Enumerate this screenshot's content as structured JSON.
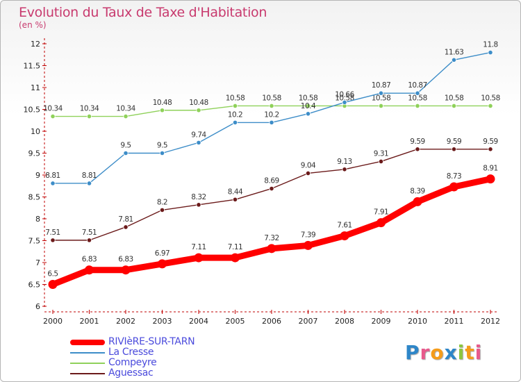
{
  "title": "Evolution du Taux de Taxe d'Habitation",
  "subtitle": "(en %)",
  "logo": {
    "text": "Proxiti",
    "letter_colors": [
      "#2e86c8",
      "#e85a8c",
      "#f59c1a",
      "#2e86c8",
      "#8dc63f",
      "#f59c1a",
      "#e85a8c"
    ]
  },
  "chart_data": {
    "type": "line",
    "title": "Evolution du Taux de Taxe d'Habitation",
    "ylabel": "(en %)",
    "xlabel": "",
    "ylim": [
      6,
      12
    ],
    "yticks": [
      6,
      6.5,
      7,
      7.5,
      8,
      8.5,
      9,
      9.5,
      10,
      10.5,
      11,
      11.5,
      12
    ],
    "grid": false,
    "legend_position": "bottom-left",
    "categories": [
      "2000",
      "2001",
      "2002",
      "2003",
      "2004",
      "2005",
      "2006",
      "2007",
      "2008",
      "2009",
      "2010",
      "2011",
      "2012"
    ],
    "series": [
      {
        "name": "RIVIèRE-SUR-TARN",
        "color": "#ff0000",
        "values": [
          6.5,
          6.83,
          6.83,
          6.97,
          7.11,
          7.11,
          7.32,
          7.39,
          7.61,
          7.91,
          8.39,
          8.73,
          8.91
        ],
        "labels": [
          "6.5",
          "6.83",
          "6.83",
          "6.97",
          "7.11",
          "7.11",
          "7.32",
          "7.39",
          "7.61",
          "7.91",
          "8.39",
          "8.73",
          "8.91"
        ]
      },
      {
        "name": "La Cresse",
        "color": "#3d8dc8",
        "values": [
          8.81,
          8.81,
          9.5,
          9.5,
          9.74,
          10.2,
          10.2,
          10.4,
          10.66,
          10.87,
          10.87,
          11.63,
          11.8
        ],
        "labels": [
          "8.81",
          "8.81",
          "9.5",
          "9.5",
          "9.74",
          "10.2",
          "10.2",
          "10.4",
          "10.66",
          "10.87",
          "10.87",
          "11.63",
          "11.8"
        ]
      },
      {
        "name": "Compeyre",
        "color": "#8fd15a",
        "values": [
          10.34,
          10.34,
          10.34,
          10.48,
          10.48,
          10.58,
          10.58,
          10.58,
          10.58,
          10.58,
          10.58,
          10.58,
          10.58
        ],
        "labels": [
          "10.34",
          "10.34",
          "10.34",
          "10.48",
          "10.48",
          "10.58",
          "10.58",
          "10.58",
          "10.58",
          "10.58",
          "10.58",
          "10.58",
          "10.58"
        ]
      },
      {
        "name": "Aguessac",
        "color": "#6b1a1a",
        "values": [
          7.51,
          7.51,
          7.81,
          8.2,
          8.32,
          8.44,
          8.69,
          9.04,
          9.13,
          9.31,
          9.59,
          9.59,
          9.59
        ],
        "labels": [
          "7.51",
          "7.51",
          "7.81",
          "8.2",
          "8.32",
          "8.44",
          "8.69",
          "9.04",
          "9.13",
          "9.31",
          "9.59",
          "9.59",
          "9.59"
        ]
      }
    ]
  }
}
